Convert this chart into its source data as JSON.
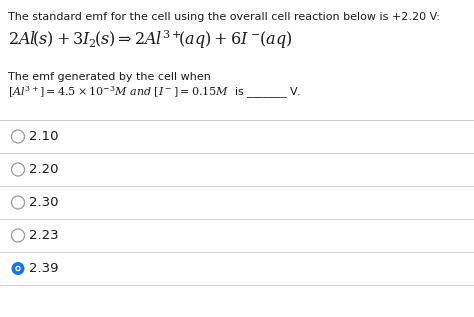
{
  "title_line": "The standard emf for the cell using the overall cell reaction below is +2.20 V:",
  "condition_line1": "The emf generated by the cell when",
  "choices": [
    "2.10",
    "2.20",
    "2.30",
    "2.23",
    "2.39"
  ],
  "correct_index": 4,
  "bg_color": "#ffffff",
  "text_color": "#1a1a1a",
  "line_color": "#d0d0d0",
  "circle_border_color": "#999999",
  "circle_filled_color": "#1a73e8",
  "title_fontsize": 8.0,
  "reaction_fontsize": 11.5,
  "condition_fontsize": 8.0,
  "choice_fontsize": 9.5,
  "fig_width": 4.74,
  "fig_height": 3.17,
  "dpi": 100
}
